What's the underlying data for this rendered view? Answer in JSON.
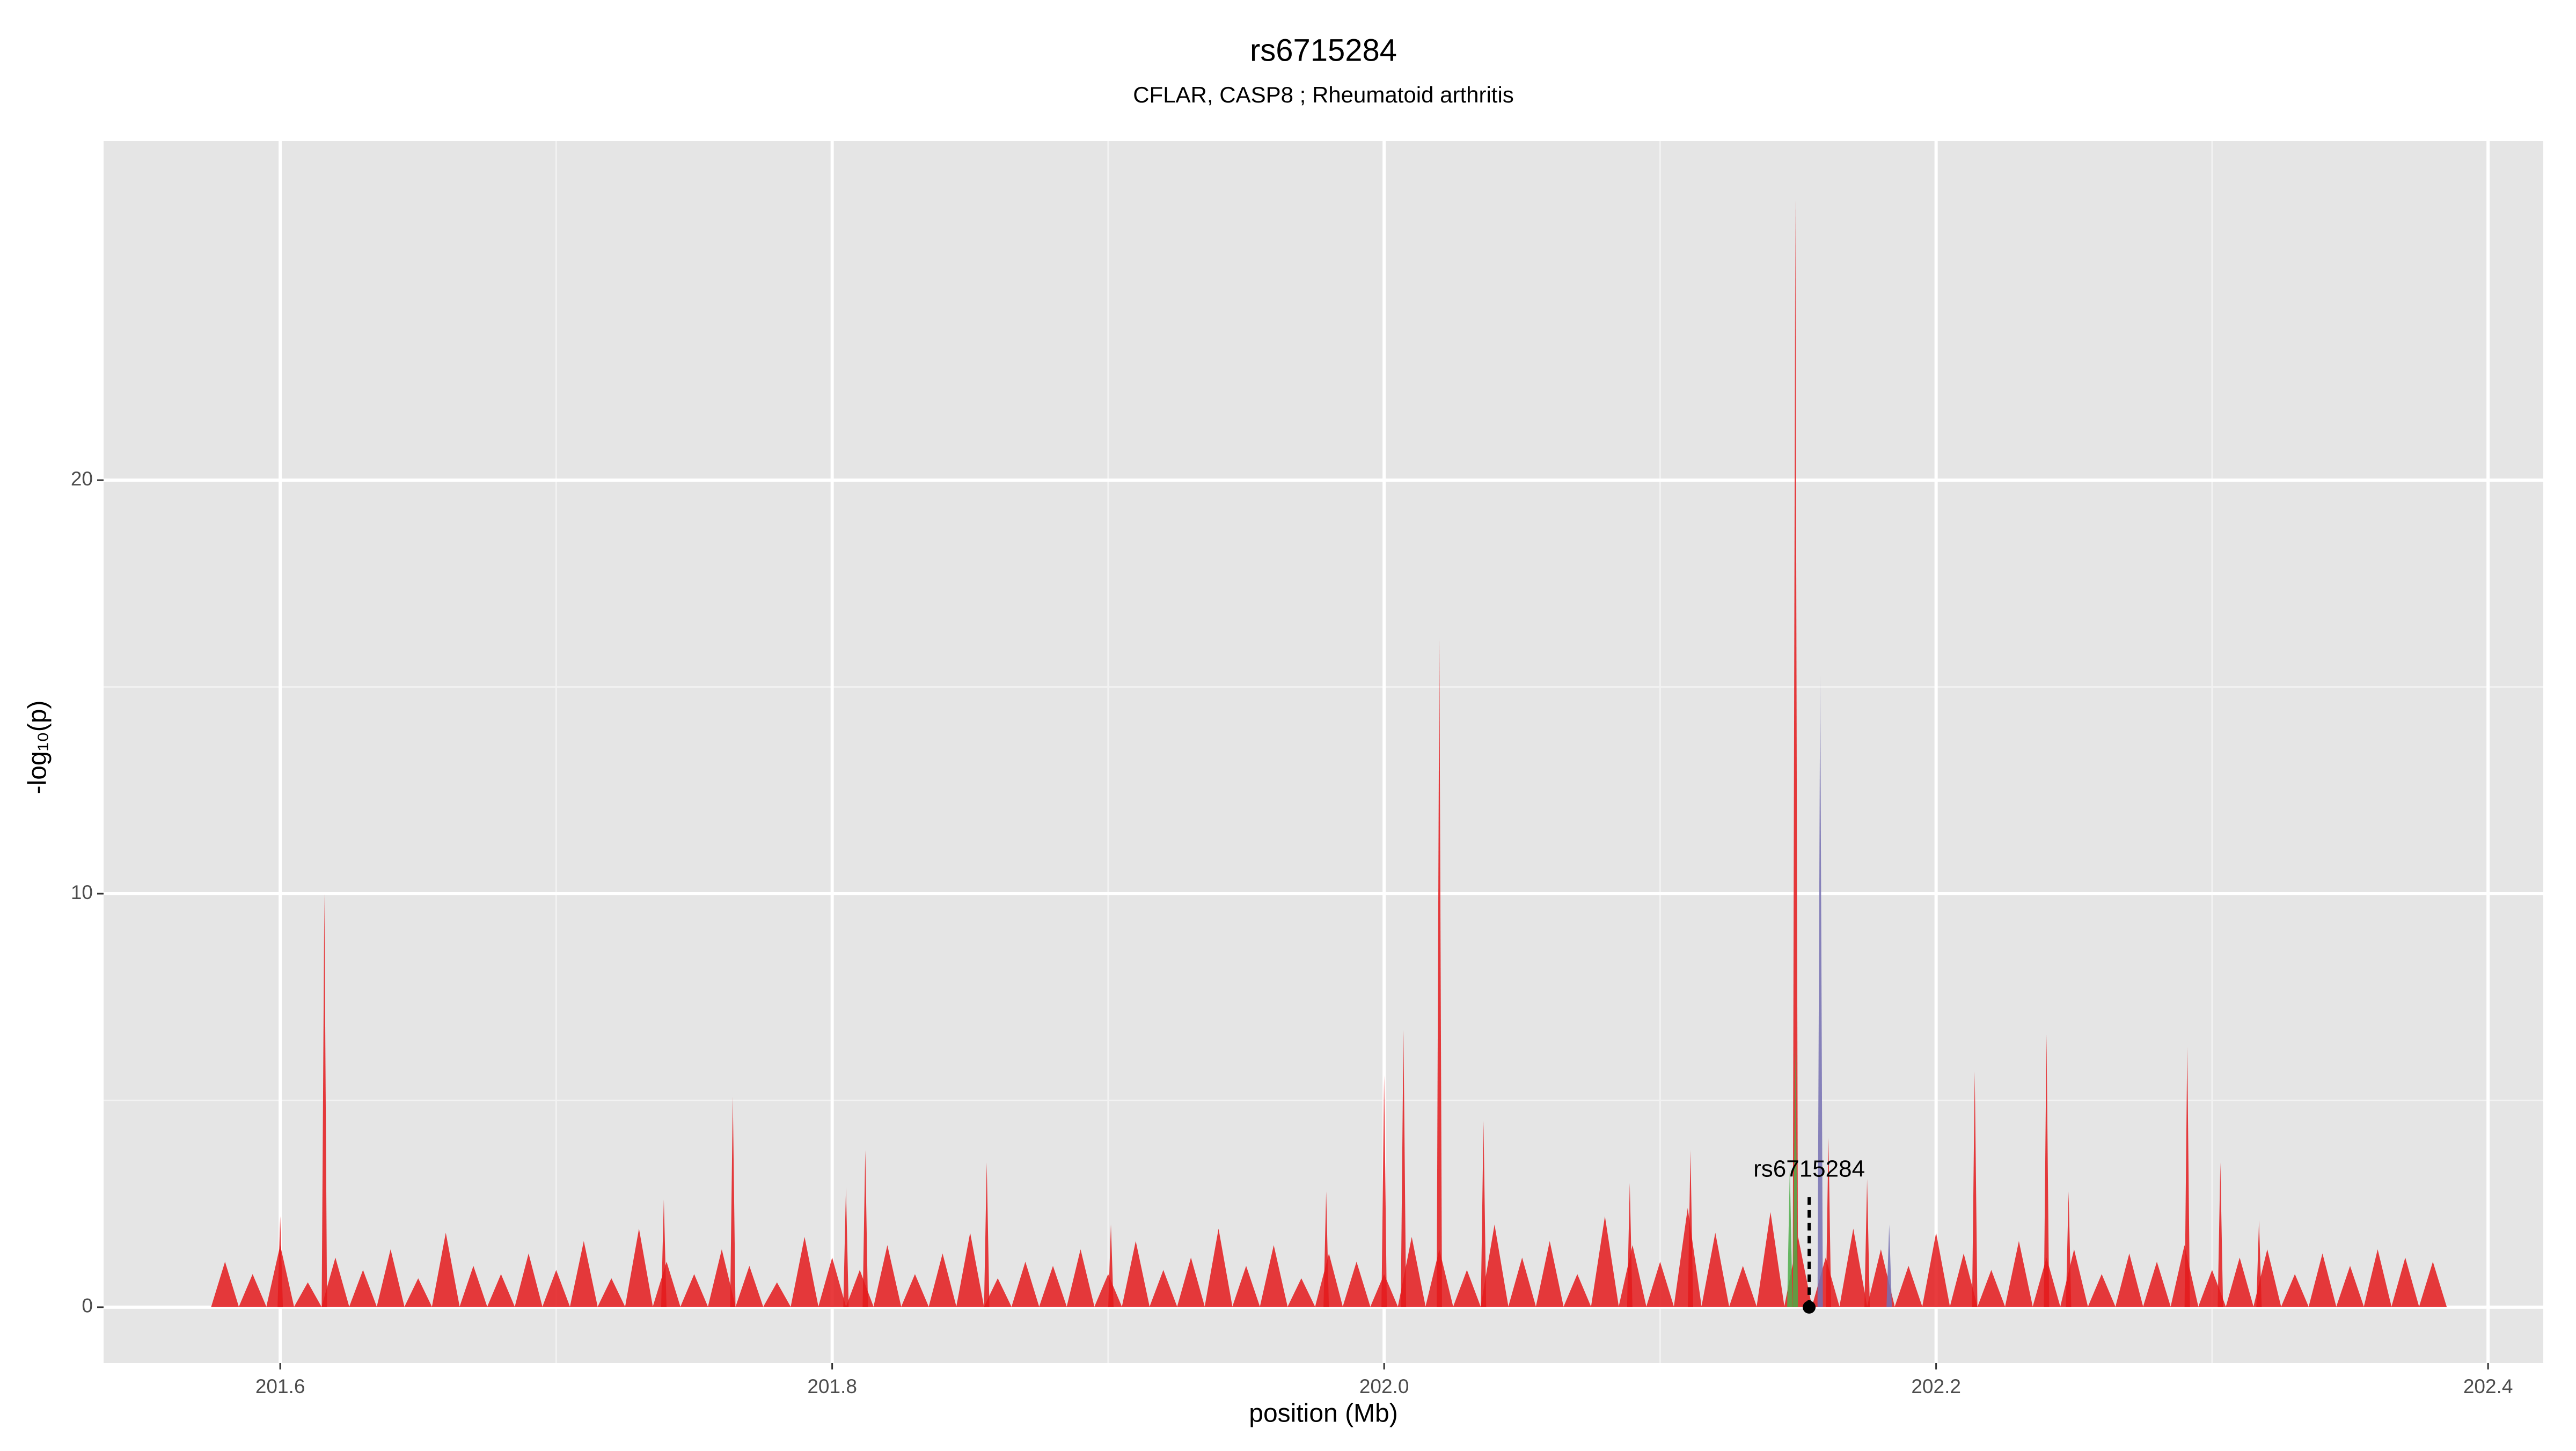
{
  "chart_data": {
    "type": "spike",
    "title": "rs6715284",
    "subtitle": "CFLAR, CASP8 ; Rheumatoid arthritis",
    "xlabel": "position (Mb)",
    "ylabel": "-log₁₀(p)",
    "xlim": [
      201.536,
      202.42
    ],
    "ylim": [
      -1.35,
      28.2
    ],
    "xticks": [
      201.6,
      201.8,
      {
        "value": 202,
        "label": "202.0"
      },
      202.2,
      202.4
    ],
    "yticks": [
      0,
      10,
      20
    ],
    "grid": true,
    "series": [
      {
        "color": "#e41a1c",
        "x": [
          201.6,
          201.616,
          201.739,
          201.764,
          201.805,
          201.812,
          201.856,
          201.901,
          201.979,
          202,
          202.007,
          202.02,
          202.036,
          202.089,
          202.111,
          202.149,
          202.161,
          202.175,
          202.214,
          202.24,
          202.248,
          202.291,
          202.303,
          202.317
        ],
        "values": [
          2.2,
          10.0,
          2.6,
          5.1,
          2.9,
          3.8,
          3.5,
          2.0,
          2.8,
          5.6,
          6.7,
          16.2,
          4.5,
          3.0,
          3.8,
          26.8,
          4.1,
          3.1,
          5.7,
          6.6,
          2.8,
          6.3,
          3.5,
          2.1
        ]
      },
      {
        "color": "#e41a1c",
        "x": [
          201.58,
          201.59,
          201.6,
          201.61,
          201.62,
          201.63,
          201.64,
          201.65,
          201.66,
          201.67,
          201.68,
          201.69,
          201.7,
          201.71,
          201.72,
          201.73,
          201.74,
          201.75,
          201.76,
          201.77,
          201.78,
          201.79,
          201.8,
          201.81,
          201.82,
          201.83,
          201.84,
          201.85,
          201.86,
          201.87,
          201.88,
          201.89,
          201.9,
          201.91,
          201.92,
          201.93,
          201.94,
          201.95,
          201.96,
          201.97,
          201.98,
          201.99,
          202,
          202.01,
          202.02,
          202.03,
          202.04,
          202.05,
          202.06,
          202.07,
          202.08,
          202.09,
          202.1,
          202.11,
          202.12,
          202.13,
          202.14,
          202.15,
          202.16,
          202.17,
          202.18,
          202.19,
          202.2,
          202.21,
          202.22,
          202.23,
          202.24,
          202.25,
          202.26,
          202.27,
          202.28,
          202.29,
          202.3,
          202.31,
          202.32,
          202.33,
          202.34,
          202.35,
          202.36,
          202.37,
          202.38
        ],
        "values": [
          1.1,
          0.8,
          1.5,
          0.6,
          1.2,
          0.9,
          1.4,
          0.7,
          1.8,
          1.0,
          0.8,
          1.3,
          0.9,
          1.6,
          0.7,
          1.9,
          1.1,
          0.8,
          1.4,
          1.0,
          0.6,
          1.7,
          1.2,
          0.9,
          1.5,
          0.8,
          1.3,
          1.8,
          0.7,
          1.1,
          1.0,
          1.4,
          0.8,
          1.6,
          0.9,
          1.2,
          1.9,
          1.0,
          1.5,
          0.7,
          1.3,
          1.1,
          0.8,
          1.7,
          1.4,
          0.9,
          2.0,
          1.2,
          1.6,
          0.8,
          2.2,
          1.5,
          1.1,
          2.4,
          1.8,
          1.0,
          2.3,
          1.7,
          1.2,
          1.9,
          1.4,
          1.0,
          1.8,
          1.3,
          0.9,
          1.6,
          1.2,
          1.4,
          0.8,
          1.3,
          1.1,
          1.5,
          0.9,
          1.2,
          1.4,
          0.8,
          1.3,
          1.0,
          1.4,
          1.2,
          1.1
        ]
      },
      {
        "color": "#4daf4a",
        "x": [
          202.147,
          202.149
        ],
        "values": [
          3.4,
          6.3
        ]
      },
      {
        "color": "#7570b3",
        "x": [
          202.158,
          202.183
        ],
        "values": [
          15.3,
          2.0
        ]
      }
    ],
    "annotation": {
      "text": "rs6715284",
      "x": 202.154,
      "y": 0
    }
  }
}
